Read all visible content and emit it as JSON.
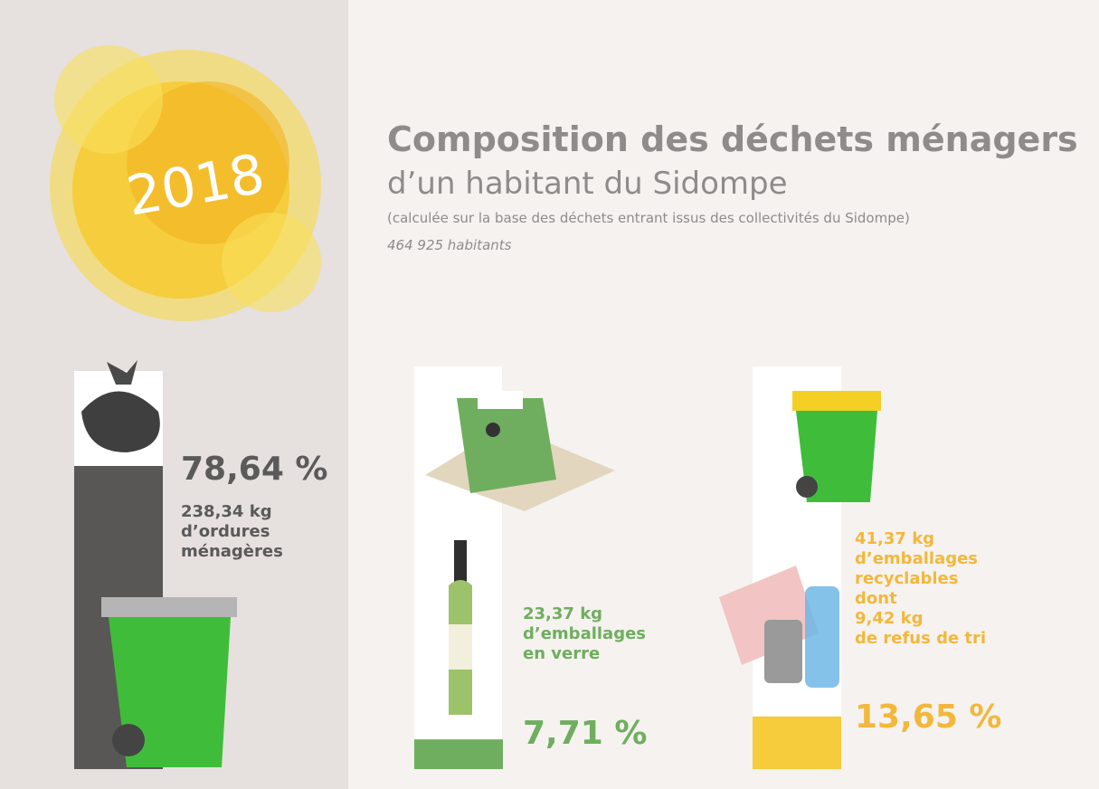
{
  "chart_data": {
    "type": "bar",
    "year": "2018",
    "title": "Composition des déchets ménagers",
    "subtitle": "d’un habitant du Sidompe",
    "note": "(calculée sur la base des déchets entrant issus des collectivités du Sidompe)",
    "population": "464 925 habitants",
    "categories": [
      "238,34 kg\nd’ordures\nménagères",
      "23,37 kg\nd’emballages\nen verre",
      "41,37 kg\nd’emballages\nrecyclables\ndont\n9,42 kg\nde refus de tri"
    ],
    "values": [
      78.64,
      7.71,
      13.65
    ],
    "value_labels": [
      "78,64 %",
      "7,71 %",
      "13,65 %"
    ],
    "colors": [
      "#585756",
      "#6fae5f",
      "#f6cb3c"
    ],
    "label_colors": [
      "#5a5a5a",
      "#6fae5f",
      "#f2b83c"
    ]
  }
}
